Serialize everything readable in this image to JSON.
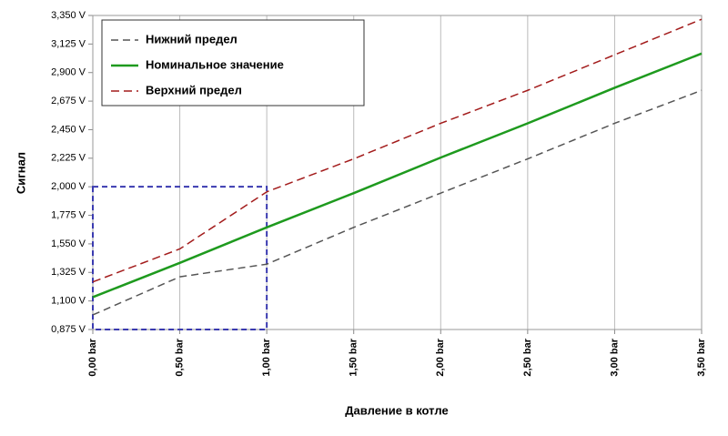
{
  "chart_data": {
    "type": "line",
    "x_label": "Давление в котле",
    "y_label": "Сигнал",
    "x": [
      0,
      0.5,
      1.0,
      1.5,
      2.0,
      2.5,
      3.0,
      3.5
    ],
    "series": [
      {
        "name": "Нижний предел",
        "color": "#555555",
        "dash": "8,5",
        "values": [
          0.99,
          1.29,
          1.39,
          1.68,
          1.95,
          2.22,
          2.5,
          2.76
        ]
      },
      {
        "name": "Номинальное значение",
        "color": "#1e9a1e",
        "values": [
          1.13,
          1.4,
          1.68,
          1.95,
          2.23,
          2.5,
          2.78,
          3.05
        ]
      },
      {
        "name": "Верхний предел",
        "color": "#a31c1c",
        "dash": "9,5",
        "values": [
          1.25,
          1.51,
          1.96,
          2.22,
          2.5,
          2.76,
          3.04,
          3.32
        ]
      }
    ],
    "xlim": [
      0,
      3.5
    ],
    "xticks": [
      {
        "value": 0,
        "label": "0,00 bar"
      },
      {
        "value": 0.5,
        "label": "0,50 bar"
      },
      {
        "value": 1.0,
        "label": "1,00 bar"
      },
      {
        "value": 1.5,
        "label": "1,50 bar"
      },
      {
        "value": 2.0,
        "label": "2,00 bar"
      },
      {
        "value": 2.5,
        "label": "2,50 bar"
      },
      {
        "value": 3.0,
        "label": "3,00 bar"
      },
      {
        "value": 3.5,
        "label": "3,50 bar"
      }
    ],
    "ylim": [
      0.875,
      3.35
    ],
    "yticks": [
      {
        "value": 0.875,
        "label": "0,875 V"
      },
      {
        "value": 1.1,
        "label": "1,100 V"
      },
      {
        "value": 1.325,
        "label": "1,325 V"
      },
      {
        "value": 1.55,
        "label": "1,550 V"
      },
      {
        "value": 1.775,
        "label": "1,775 V"
      },
      {
        "value": 2.0,
        "label": "2,000 V"
      },
      {
        "value": 2.225,
        "label": "2,225 V"
      },
      {
        "value": 2.45,
        "label": "2,450 V"
      },
      {
        "value": 2.675,
        "label": "2,675 V"
      },
      {
        "value": 2.9,
        "label": "2,900 V"
      },
      {
        "value": 3.125,
        "label": "3,125 V"
      },
      {
        "value": 3.35,
        "label": "3,350 V"
      }
    ],
    "grid": "x",
    "highlight_box": {
      "x": [
        0,
        1.0
      ],
      "y": [
        0.875,
        2.0
      ],
      "color": "#3a3ab0"
    }
  }
}
